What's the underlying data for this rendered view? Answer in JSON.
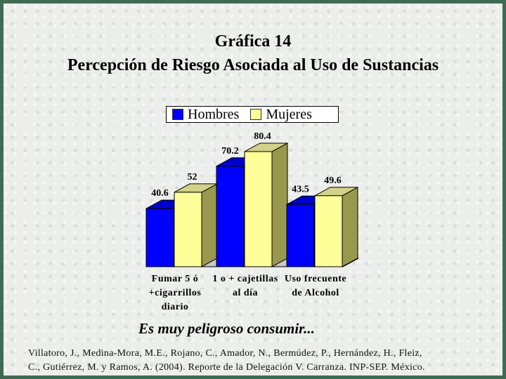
{
  "title_line1": "Gráfica 14",
  "title_line2": "Percepción de Riesgo Asociada al Uso de Sustancias",
  "tagline": "Es muy peligroso consumir...",
  "citation_line1": "Villatoro, J., Medina-Mora, M.E., Rojano, C., Amador, N., Bermúdez, P., Hernández, H., Fleiz,",
  "citation_line2": "C., Gutiérrez, M. y Ramos, A. (2004). Reporte de la Delegación V. Carranza. INP-SEP. México.",
  "chart_data": {
    "type": "bar",
    "style": "3d-clustered",
    "categories": [
      [
        "Fumar 5 ó",
        "+cigarrillos",
        "diario"
      ],
      [
        "1 o + cajetillas",
        "al día"
      ],
      [
        "Uso frecuente",
        "de Alcohol"
      ]
    ],
    "series": [
      {
        "name": "Hombres",
        "color": "#0000ff",
        "values": [
          40.6,
          70.2,
          43.5
        ]
      },
      {
        "name": "Mujeres",
        "color": "#ffff99",
        "values": [
          52,
          80.4,
          49.6
        ]
      }
    ],
    "value_labels": [
      [
        "40.6",
        "70.2",
        "43.5"
      ],
      [
        "52",
        "80.4",
        "49.6"
      ]
    ],
    "legend_position": "top",
    "grid": false
  }
}
